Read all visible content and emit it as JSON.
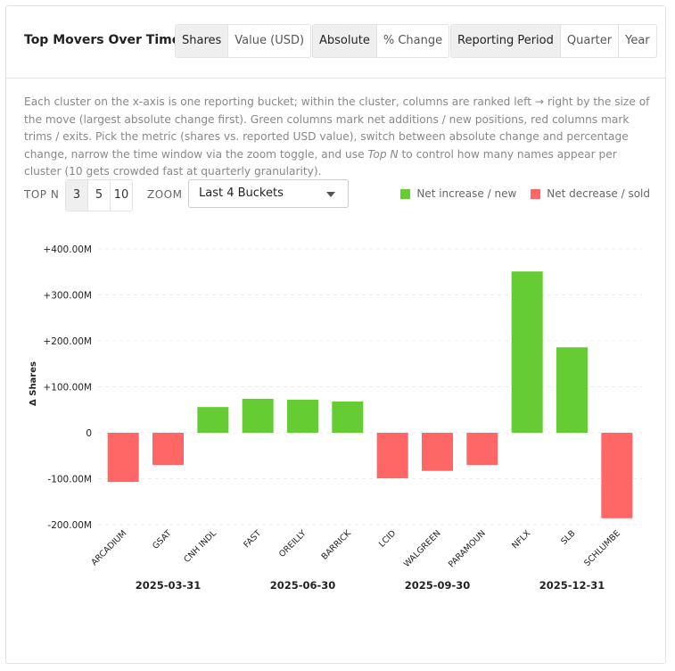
{
  "header": {
    "title": "Top Movers Over Time",
    "metric": [
      "Shares",
      "Value (USD)"
    ],
    "mode": [
      "Absolute",
      "% Change"
    ],
    "period": [
      "Reporting Period",
      "Quarter",
      "Year"
    ]
  },
  "description": {
    "before": "Each cluster on the x-axis is one reporting bucket; within the cluster, columns are ranked left → right by the size of the move (largest absolute change first). Green columns mark net additions / new positions, red columns mark trims / exits. Pick the metric (shares vs. reported USD value), switch between absolute change and percentage change, narrow the time window via the zoom toggle, and use ",
    "emphasis": "Top N",
    "after": " to control how many names appear per cluster (10 gets crowded fast at quarterly granularity)."
  },
  "controls": {
    "top_n_label": "TOP N",
    "top_n": [
      3,
      5,
      10
    ],
    "zoom_label": "ZOOM",
    "zoom": "Last 4 Buckets"
  },
  "chart_data": {
    "type": "bar",
    "y_label": "Δ Shares",
    "categories": [
      "ARCADIUM",
      "GSAT",
      "CNH INDL",
      "FAST",
      "OREILLY",
      "BARRICK",
      "LCID",
      "WALGREEN",
      "PARAMOUN",
      "NFLX",
      "SLB",
      "SCHLUMBE"
    ],
    "groups": [
      "2025-03-31",
      "2025-06-30",
      "2025-09-30",
      "2025-12-31"
    ],
    "values": [
      -107000000,
      -70000000,
      56000000,
      74000000,
      72000000,
      68000000,
      -99000000,
      -83000000,
      -70000000,
      351000000,
      186000000,
      -186000000
    ],
    "legend": [
      {
        "name": "Net increase / new",
        "color": "#66cc33"
      },
      {
        "name": "Net decrease / sold",
        "color": "#ff6666"
      }
    ],
    "ylim": [
      -200000000,
      400000000
    ],
    "yticks": [
      {
        "value": -200000000,
        "label": "-200.00M"
      },
      {
        "value": -100000000,
        "label": "-100.00M"
      },
      0,
      {
        "value": 100000000,
        "label": "+100.00M"
      },
      {
        "value": 200000000,
        "label": "+200.00M"
      },
      {
        "value": 300000000,
        "label": "+300.00M"
      },
      {
        "value": 400000000,
        "label": "+400.00M"
      }
    ],
    "grid": true
  }
}
